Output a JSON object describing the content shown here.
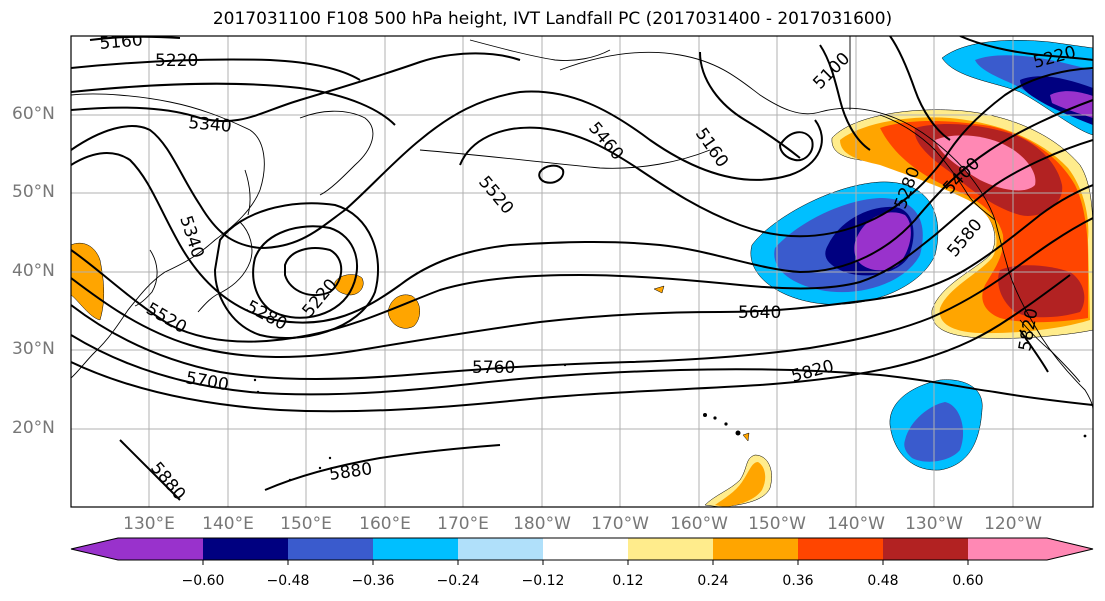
{
  "title": "2017031100 F108 500 hPa height, IVT Landfall PC (2017031400 - 2017031600)",
  "lat_labels": [
    "60°N",
    "50°N",
    "40°N",
    "30°N",
    "20°N"
  ],
  "lon_labels": [
    "130°E",
    "140°E",
    "150°E",
    "160°E",
    "170°E",
    "180°W",
    "170°W",
    "160°W",
    "150°W",
    "140°W",
    "130°W",
    "120°W"
  ],
  "contour_labels": [
    "5160",
    "5220",
    "5340",
    "5340",
    "5280",
    "5220",
    "5520",
    "5460",
    "5160",
    "5100",
    "5280",
    "5400",
    "5580",
    "5640",
    "5760",
    "5700",
    "5820",
    "5880",
    "5880",
    "5820",
    "5520",
    "5220"
  ],
  "colorbar": {
    "ticks": [
      "−0.60",
      "−0.48",
      "−0.36",
      "−0.24",
      "−0.12",
      "0.12",
      "0.24",
      "0.36",
      "0.48",
      "0.60"
    ],
    "colors": [
      "#9932cc",
      "#000080",
      "#3a5bcd",
      "#00bfff",
      "#b0e0fa",
      "#ffffff",
      "#ffec8c",
      "#ffa500",
      "#ff4500",
      "#b22222",
      "#ff88b4",
      "#ff88b4"
    ]
  }
}
